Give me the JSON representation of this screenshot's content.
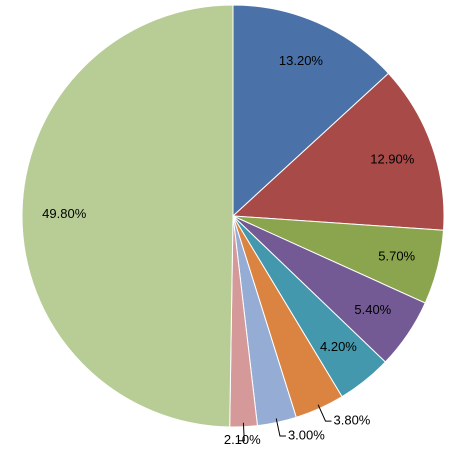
{
  "chart_data": {
    "type": "pie",
    "values": [
      13.2,
      12.9,
      5.7,
      5.4,
      4.2,
      3.8,
      3.0,
      2.1,
      49.8
    ],
    "value_labels": [
      "13.20%",
      "12.90%",
      "5.70%",
      "5.40%",
      "4.20%",
      "3.80%",
      "3.00%",
      "2.10%",
      "49.80%"
    ],
    "colors": [
      "#4a72a8",
      "#a84a48",
      "#8aa54e",
      "#745a94",
      "#4398ad",
      "#db8441",
      "#95acd4",
      "#d59999",
      "#b8cd96"
    ]
  }
}
